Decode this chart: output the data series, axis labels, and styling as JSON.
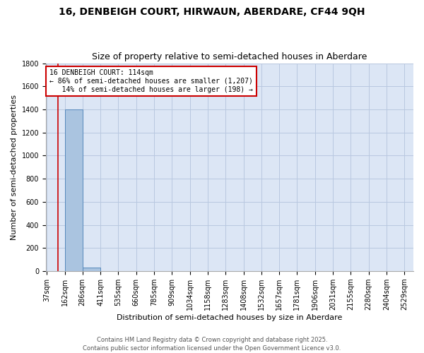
{
  "title1": "16, DENBEIGH COURT, HIRWAUN, ABERDARE, CF44 9QH",
  "title2": "Size of property relative to semi-detached houses in Aberdare",
  "xlabel": "Distribution of semi-detached houses by size in Aberdare",
  "ylabel": "Number of semi-detached properties",
  "bins": [
    "37sqm",
    "162sqm",
    "286sqm",
    "411sqm",
    "535sqm",
    "660sqm",
    "785sqm",
    "909sqm",
    "1034sqm",
    "1158sqm",
    "1283sqm",
    "1408sqm",
    "1532sqm",
    "1657sqm",
    "1781sqm",
    "1906sqm",
    "2031sqm",
    "2155sqm",
    "2280sqm",
    "2404sqm",
    "2529sqm"
  ],
  "values": [
    0,
    1400,
    30,
    0,
    0,
    0,
    0,
    0,
    0,
    0,
    0,
    0,
    0,
    0,
    0,
    0,
    0,
    0,
    0,
    0,
    0
  ],
  "bin_edges_numeric": [
    37,
    162,
    286,
    411,
    535,
    660,
    785,
    909,
    1034,
    1158,
    1283,
    1408,
    1532,
    1657,
    1781,
    1906,
    2031,
    2155,
    2280,
    2404,
    2529
  ],
  "property_size": 114,
  "bar_color": "#aac4e0",
  "bar_edge_color": "#5588bb",
  "red_line_color": "#cc0000",
  "bg_color": "#dce6f5",
  "grid_color": "#b8c8e0",
  "annotation_box_color": "#cc0000",
  "annotation_line1": "16 DENBEIGH COURT: 114sqm",
  "annotation_line2": "← 86% of semi-detached houses are smaller (1,207)",
  "annotation_line3": "   14% of semi-detached houses are larger (198) →",
  "ylim": [
    0,
    1800
  ],
  "yticks": [
    0,
    200,
    400,
    600,
    800,
    1000,
    1200,
    1400,
    1600,
    1800
  ],
  "footer": "Contains HM Land Registry data © Crown copyright and database right 2025.\nContains public sector information licensed under the Open Government Licence v3.0.",
  "title1_fontsize": 10,
  "title2_fontsize": 9,
  "tick_fontsize": 7,
  "axis_label_fontsize": 8,
  "annotation_fontsize": 7,
  "footer_fontsize": 6
}
